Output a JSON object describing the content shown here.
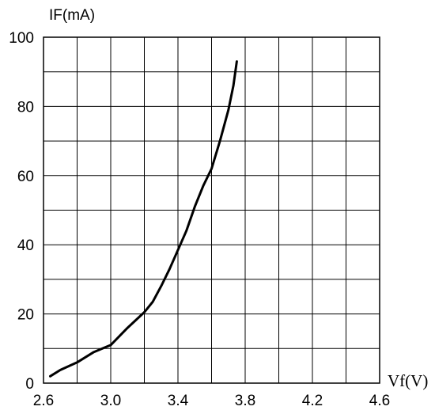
{
  "chart_data": {
    "type": "line",
    "title": "",
    "xlabel": "Vf(V)",
    "ylabel": "IF(mA)",
    "xlim": [
      2.6,
      4.6
    ],
    "ylim": [
      0,
      100
    ],
    "x_ticks": [
      "2.6",
      "3.0",
      "3.4",
      "3.8",
      "4.2",
      "4.6"
    ],
    "y_ticks": [
      "0",
      "20",
      "40",
      "60",
      "80",
      "100"
    ],
    "x_grid_step": 0.2,
    "y_grid_step": 10,
    "grid": true,
    "series": [
      {
        "x": [
          2.64,
          2.7,
          2.8,
          2.9,
          3.0,
          3.1,
          3.2,
          3.25,
          3.3,
          3.35,
          3.4,
          3.45,
          3.5,
          3.55,
          3.6,
          3.65,
          3.7,
          3.73,
          3.75
        ],
        "y": [
          2,
          3.8,
          6,
          9,
          11,
          16,
          20.5,
          23.5,
          28,
          33,
          38.5,
          44,
          51,
          57,
          62,
          70,
          79,
          86,
          93
        ]
      }
    ]
  }
}
